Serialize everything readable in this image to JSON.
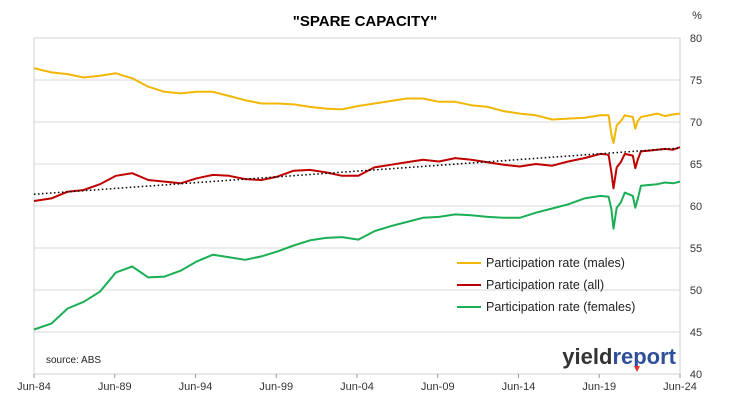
{
  "chart_data": {
    "type": "line",
    "title": "\"SPARE CAPACITY\"",
    "y_unit_label": "%",
    "ylim": [
      40,
      80
    ],
    "y_ticks": [
      "40",
      "45",
      "50",
      "55",
      "60",
      "65",
      "70",
      "75",
      "80"
    ],
    "y_axis_side": "right",
    "x_ticks": [
      "Jun-84",
      "Jun-89",
      "Jun-94",
      "Jun-99",
      "Jun-04",
      "Jun-09",
      "Jun-14",
      "Jun-19",
      "Jun-24"
    ],
    "xlim": [
      1984.42,
      2024.42
    ],
    "grid": true,
    "legend_position": "lower-right",
    "series": [
      {
        "name": "Participation rate (males)",
        "color": "#F2B705",
        "x": [
          1984.42,
          1985.5,
          1986.5,
          1987.5,
          1988.5,
          1989.5,
          1990.5,
          1991.5,
          1992.5,
          1993.5,
          1994.5,
          1995.5,
          1996.5,
          1997.5,
          1998.5,
          1999.5,
          2000.5,
          2001.5,
          2002.5,
          2003.5,
          2004.5,
          2005.5,
          2006.5,
          2007.5,
          2008.5,
          2009.5,
          2010.5,
          2011.5,
          2012.5,
          2013.5,
          2014.5,
          2015.5,
          2016.5,
          2017.5,
          2018.5,
          2019.5,
          2020.0,
          2020.17,
          2020.3,
          2020.5,
          2020.75,
          2021.0,
          2021.5,
          2021.65,
          2021.8,
          2022.0,
          2022.5,
          2023.0,
          2023.5,
          2024.0,
          2024.42
        ],
        "y": [
          76.4,
          75.9,
          75.7,
          75.3,
          75.5,
          75.8,
          75.2,
          74.2,
          73.6,
          73.4,
          73.6,
          73.6,
          73.1,
          72.6,
          72.2,
          72.2,
          72.1,
          71.8,
          71.6,
          71.5,
          71.9,
          72.2,
          72.5,
          72.8,
          72.8,
          72.4,
          72.4,
          72.0,
          71.8,
          71.3,
          71.0,
          70.8,
          70.3,
          70.4,
          70.5,
          70.8,
          70.8,
          68.5,
          67.5,
          69.6,
          70.1,
          70.8,
          70.6,
          69.2,
          70.1,
          70.6,
          70.8,
          71.0,
          70.7,
          70.9,
          71.0
        ]
      },
      {
        "name": "Participation rate (all)",
        "color": "#C00000",
        "x": [
          1984.42,
          1985.5,
          1986.5,
          1987.5,
          1988.5,
          1989.5,
          1990.5,
          1991.5,
          1992.5,
          1993.5,
          1994.5,
          1995.5,
          1996.5,
          1997.5,
          1998.5,
          1999.5,
          2000.5,
          2001.5,
          2002.5,
          2003.5,
          2004.5,
          2005.5,
          2006.5,
          2007.5,
          2008.5,
          2009.5,
          2010.5,
          2011.5,
          2012.5,
          2013.5,
          2014.5,
          2015.5,
          2016.5,
          2017.5,
          2018.5,
          2019.5,
          2020.0,
          2020.17,
          2020.3,
          2020.5,
          2020.75,
          2021.0,
          2021.5,
          2021.65,
          2021.8,
          2022.0,
          2022.5,
          2023.0,
          2023.5,
          2024.0,
          2024.42
        ],
        "y": [
          60.6,
          60.9,
          61.7,
          61.9,
          62.6,
          63.6,
          63.9,
          63.1,
          62.9,
          62.7,
          63.3,
          63.7,
          63.6,
          63.2,
          63.1,
          63.5,
          64.2,
          64.3,
          64.0,
          63.6,
          63.6,
          64.6,
          64.9,
          65.2,
          65.5,
          65.3,
          65.7,
          65.5,
          65.2,
          64.9,
          64.7,
          65.0,
          64.8,
          65.3,
          65.7,
          66.2,
          66.1,
          64.0,
          62.1,
          64.6,
          65.2,
          66.2,
          66.0,
          64.5,
          65.5,
          66.5,
          66.6,
          66.7,
          66.8,
          66.7,
          67.0
        ]
      },
      {
        "name": "Participation rate (females)",
        "color": "#1AAF54",
        "x": [
          1984.42,
          1985.5,
          1986.5,
          1987.5,
          1988.5,
          1989.5,
          1990.5,
          1991.5,
          1992.5,
          1993.5,
          1994.5,
          1995.5,
          1996.5,
          1997.5,
          1998.5,
          1999.5,
          2000.5,
          2001.5,
          2002.5,
          2003.5,
          2004.5,
          2005.5,
          2006.5,
          2007.5,
          2008.5,
          2009.5,
          2010.5,
          2011.5,
          2012.5,
          2013.5,
          2014.5,
          2015.5,
          2016.5,
          2017.5,
          2018.5,
          2019.5,
          2020.0,
          2020.17,
          2020.3,
          2020.5,
          2020.75,
          2021.0,
          2021.5,
          2021.65,
          2021.8,
          2022.0,
          2022.5,
          2023.0,
          2023.5,
          2024.0,
          2024.42
        ],
        "y": [
          45.3,
          46.0,
          47.8,
          48.6,
          49.8,
          52.1,
          52.8,
          51.5,
          51.6,
          52.3,
          53.4,
          54.2,
          53.9,
          53.6,
          54.0,
          54.6,
          55.3,
          55.9,
          56.2,
          56.3,
          56.0,
          57.0,
          57.6,
          58.1,
          58.6,
          58.7,
          59.0,
          58.9,
          58.7,
          58.6,
          58.6,
          59.2,
          59.7,
          60.2,
          60.9,
          61.2,
          61.1,
          59.6,
          57.3,
          59.8,
          60.4,
          61.6,
          61.2,
          59.8,
          60.8,
          62.4,
          62.5,
          62.6,
          62.8,
          62.7,
          62.9
        ]
      }
    ],
    "trendline": {
      "series": "Participation rate (all)",
      "style": "dotted",
      "color": "#000000",
      "x": [
        1984.42,
        2024.42
      ],
      "y": [
        61.4,
        66.9
      ]
    },
    "source": "source: ABS"
  },
  "logo": {
    "part1": "yield",
    "part2": "report",
    "part1_color": "#333333",
    "part2_color": "#2E4E9A",
    "accent_color": "#E03030"
  }
}
